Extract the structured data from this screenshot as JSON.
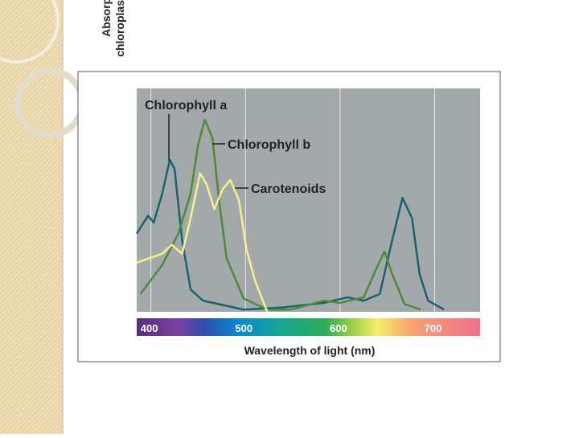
{
  "chart_data": {
    "type": "line",
    "xlabel": "Wavelength of light (nm)",
    "ylabel": [
      "Absorption of",
      "chloroplast pigments"
    ],
    "xlim": [
      385,
      748
    ],
    "ylim": [
      0,
      1
    ],
    "xticks": [
      400,
      500,
      600,
      700
    ],
    "grid": true,
    "series": [
      {
        "name": "Chlorophyll a",
        "color": "#17646e",
        "x": [
          385,
          397,
          403,
          412,
          420,
          425,
          433,
          442,
          455,
          498,
          540,
          583,
          608,
          625,
          642,
          655,
          666,
          676,
          684,
          693,
          710
        ],
        "values": [
          0.35,
          0.43,
          0.4,
          0.53,
          0.68,
          0.64,
          0.32,
          0.1,
          0.05,
          0.01,
          0.02,
          0.04,
          0.065,
          0.05,
          0.08,
          0.32,
          0.51,
          0.42,
          0.17,
          0.05,
          0.01
        ]
      },
      {
        "name": "Chlorophyll b",
        "color": "#4f8a3a",
        "x": [
          389,
          412,
          429,
          442,
          450,
          457,
          465,
          472,
          480,
          498,
          523,
          548,
          583,
          600,
          625,
          638,
          647,
          655,
          668,
          685
        ],
        "values": [
          0.08,
          0.21,
          0.35,
          0.53,
          0.75,
          0.86,
          0.78,
          0.5,
          0.24,
          0.06,
          0.01,
          0.01,
          0.05,
          0.04,
          0.065,
          0.19,
          0.27,
          0.17,
          0.035,
          0.01
        ]
      },
      {
        "name": "Carotenoids",
        "color": "#f4f08c",
        "x": [
          385,
          412,
          422,
          433,
          442,
          452,
          459,
          467,
          476,
          484,
          493,
          501,
          510,
          523
        ],
        "values": [
          0.22,
          0.26,
          0.3,
          0.26,
          0.42,
          0.62,
          0.57,
          0.46,
          0.55,
          0.59,
          0.5,
          0.28,
          0.14,
          0
        ]
      }
    ]
  }
}
